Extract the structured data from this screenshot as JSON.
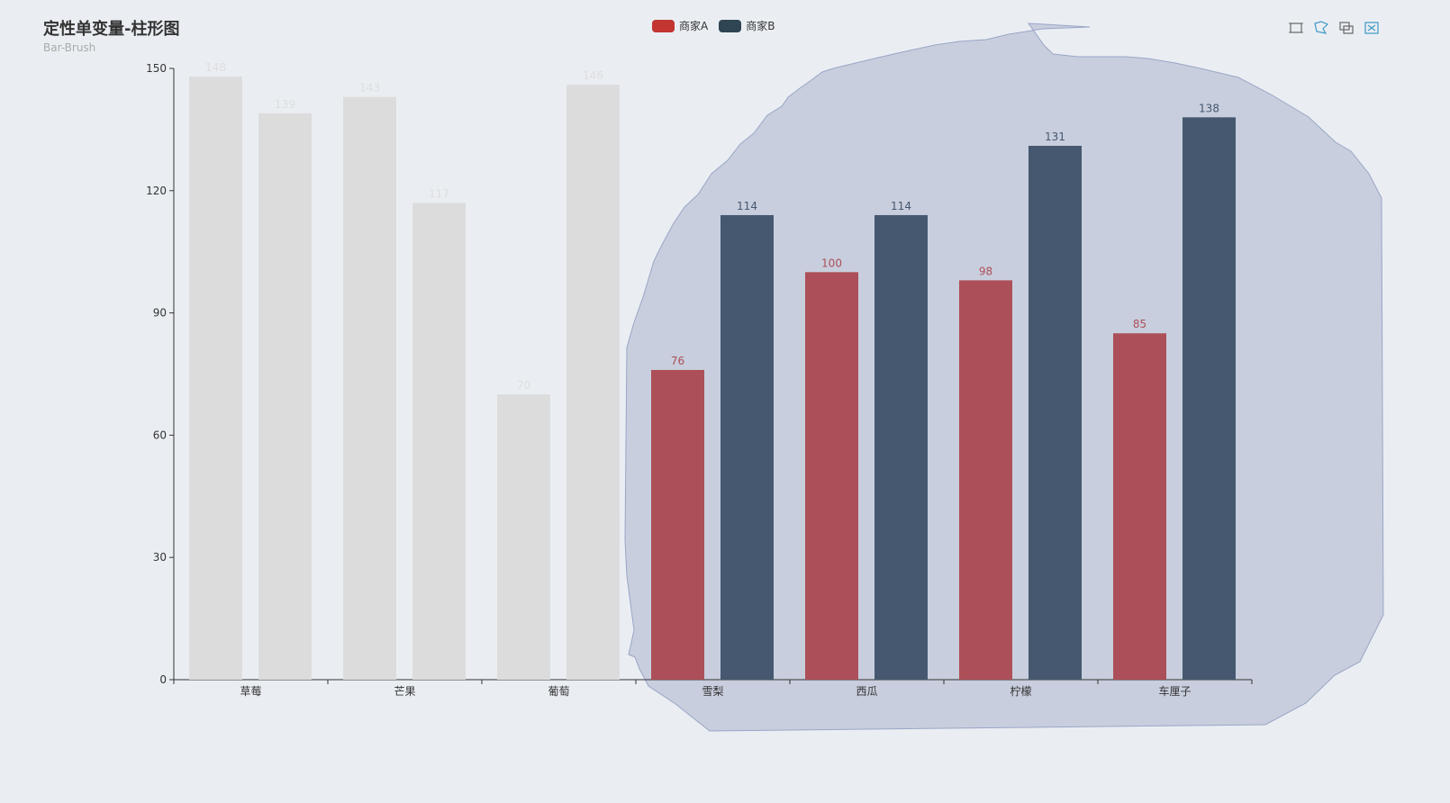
{
  "title": "定性单变量-柱形图",
  "subtitle": "Bar-Brush",
  "legend": [
    {
      "name": "商家A",
      "color": "#c23531"
    },
    {
      "name": "商家B",
      "color": "#2f4554"
    }
  ],
  "toolbox": [
    "rect-brush-icon",
    "polygon-brush-icon",
    "keep-selection-icon",
    "clear-selection-icon"
  ],
  "colors": {
    "seriesA_selected": "#ad4f58",
    "seriesB_selected": "#45586f",
    "unselected": "#dcdcdc",
    "unselected_label": "#dddddd",
    "brush_fill": "#c8cedd",
    "brush_stroke": "#9aa6c6",
    "toolbox_icon": "#666666",
    "toolbox_active": "#3e98c5"
  },
  "chart_data": {
    "type": "bar",
    "categories": [
      "草莓",
      "芒果",
      "葡萄",
      "雪梨",
      "西瓜",
      "柠檬",
      "车厘子"
    ],
    "series": [
      {
        "name": "商家A",
        "values": [
          148,
          143,
          70,
          76,
          100,
          98,
          85
        ]
      },
      {
        "name": "商家B",
        "values": [
          139,
          117,
          146,
          114,
          114,
          131,
          138
        ]
      }
    ],
    "selected_categories": [
      "雪梨",
      "西瓜",
      "柠檬",
      "车厘子"
    ],
    "ylim": [
      0,
      150
    ],
    "yticks": [
      0,
      30,
      60,
      90,
      120,
      150
    ],
    "xlabel": "",
    "ylabel": "",
    "legend_position": "top-center",
    "brush_type": "polygon"
  }
}
